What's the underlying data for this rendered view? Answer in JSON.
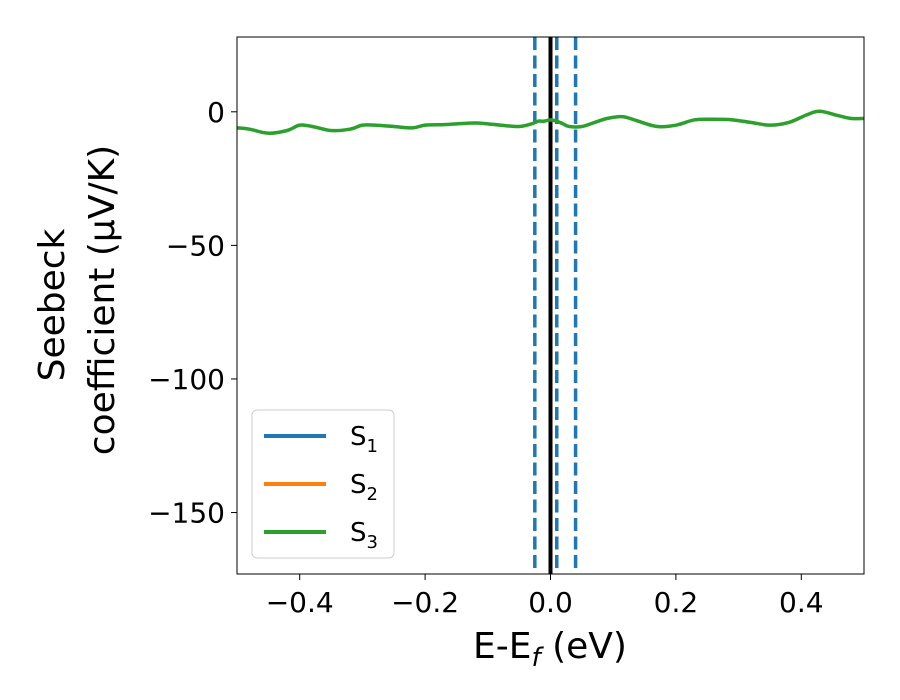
{
  "chart_data": {
    "type": "line",
    "xlabel": "E-E",
    "xlabel_sub": "f",
    "xlabel_unit": " (eV)",
    "ylabel_line1": "Seebeck",
    "ylabel_line2": "coefficient  (μV/K)",
    "xlim": [
      -0.5,
      0.5
    ],
    "ylim": [
      -173,
      28
    ],
    "xticks": [
      -0.4,
      -0.2,
      0.0,
      0.2,
      0.4
    ],
    "xtick_labels": [
      "−0.4",
      "−0.2",
      "0.0",
      "0.2",
      "0.4"
    ],
    "yticks": [
      0,
      -50,
      -100,
      -150
    ],
    "ytick_labels": [
      "0",
      "−50",
      "−100",
      "−150"
    ],
    "grid": false,
    "legend_placement": "lower-left",
    "series": [
      {
        "name": "S",
        "sub": "1",
        "color": "#1f77b4"
      },
      {
        "name": "S",
        "sub": "2",
        "color": "#ff7f0e"
      },
      {
        "name": "S",
        "sub": "3",
        "color": "#2ca02c",
        "x": [
          -0.5,
          -0.48,
          -0.45,
          -0.42,
          -0.4,
          -0.38,
          -0.35,
          -0.32,
          -0.3,
          -0.28,
          -0.25,
          -0.22,
          -0.2,
          -0.17,
          -0.15,
          -0.12,
          -0.1,
          -0.08,
          -0.05,
          -0.03,
          -0.02,
          -0.01,
          0.0,
          0.01,
          0.02,
          0.03,
          0.05,
          0.07,
          0.09,
          0.11,
          0.12,
          0.14,
          0.17,
          0.2,
          0.23,
          0.26,
          0.29,
          0.32,
          0.35,
          0.38,
          0.41,
          0.43,
          0.46,
          0.48,
          0.5
        ],
        "y": [
          -6,
          -6.5,
          -8,
          -7,
          -5,
          -5.5,
          -7,
          -6.5,
          -5,
          -5,
          -5.5,
          -6,
          -5,
          -4.8,
          -4.5,
          -4.2,
          -4.5,
          -5,
          -5.5,
          -4.5,
          -3.5,
          -3.5,
          -3,
          -3.5,
          -4.5,
          -5.5,
          -5.5,
          -4,
          -2.5,
          -1.8,
          -2,
          -3.5,
          -5.5,
          -5,
          -3,
          -2.8,
          -3,
          -4,
          -5,
          -4,
          -1,
          0.2,
          -1.5,
          -2.5,
          -2.5
        ]
      }
    ],
    "vlines": [
      {
        "x": 0.0,
        "style": "solid",
        "color": "#000000"
      },
      {
        "x": -0.025,
        "style": "dashed",
        "color": "#1f77b4"
      },
      {
        "x": 0.01,
        "style": "dashed",
        "color": "#1f77b4"
      },
      {
        "x": 0.04,
        "style": "dashed",
        "color": "#1f77b4"
      }
    ]
  }
}
